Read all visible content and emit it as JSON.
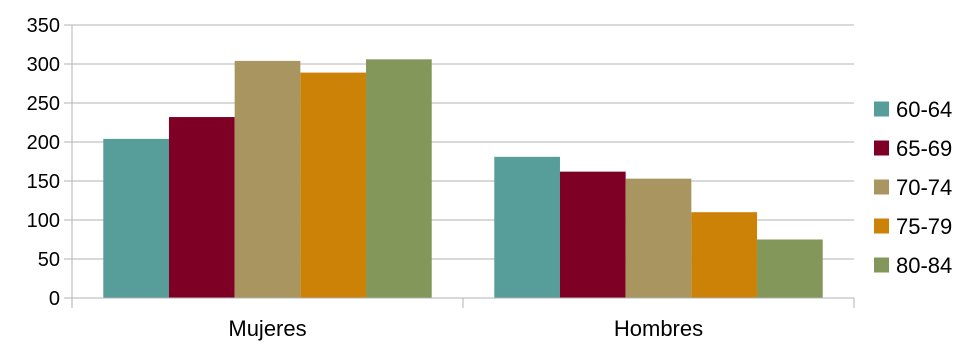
{
  "chart_data": {
    "type": "bar",
    "title": "",
    "xlabel": "",
    "ylabel": "",
    "categories": [
      "Mujeres",
      "Hombres"
    ],
    "series": [
      {
        "name": "60-64",
        "values": [
          204,
          181
        ],
        "color": "#579d99"
      },
      {
        "name": "65-69",
        "values": [
          232,
          162
        ],
        "color": "#7e0025"
      },
      {
        "name": "70-74",
        "values": [
          304,
          153
        ],
        "color": "#a8955f"
      },
      {
        "name": "75-79",
        "values": [
          289,
          110
        ],
        "color": "#cc8207"
      },
      {
        "name": "80-84",
        "values": [
          306,
          75
        ],
        "color": "#83975a"
      }
    ],
    "ylim": [
      0,
      350
    ],
    "yticks": [
      0,
      50,
      100,
      150,
      200,
      250,
      300,
      350
    ],
    "grid": true,
    "legend": "right"
  }
}
